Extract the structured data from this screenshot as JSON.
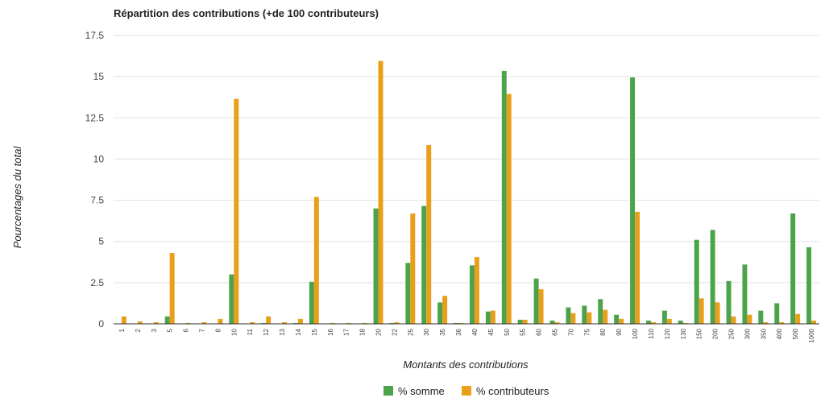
{
  "chart_data": {
    "type": "bar",
    "title": "Répartition des contributions (+de 100 contributeurs)",
    "xlabel": "Montants des contributions",
    "ylabel": "Pourcentages du total",
    "ylim": [
      0,
      17.5
    ],
    "yticks": [
      "0",
      "2.5",
      "5",
      "7.5",
      "10",
      "12.5",
      "15",
      "17.5"
    ],
    "grid": true,
    "legend_position": "bottom",
    "categories": [
      "1",
      "2",
      "3",
      "5",
      "6",
      "7",
      "8",
      "10",
      "11",
      "12",
      "13",
      "14",
      "15",
      "16",
      "17",
      "18",
      "20",
      "22",
      "25",
      "30",
      "35",
      "36",
      "40",
      "45",
      "50",
      "55",
      "60",
      "65",
      "70",
      "75",
      "80",
      "90",
      "100",
      "110",
      "120",
      "130",
      "150",
      "200",
      "250",
      "300",
      "350",
      "400",
      "500",
      "1000"
    ],
    "series": [
      {
        "name": "% somme",
        "color": "#4ca34c",
        "values": [
          0,
          0,
          0,
          0.45,
          0,
          0,
          0,
          3,
          0,
          0.05,
          0,
          0.05,
          2.55,
          0,
          0,
          0,
          7,
          0.05,
          3.7,
          7.15,
          1.3,
          0.05,
          3.55,
          0.75,
          15.35,
          0.25,
          2.75,
          0.2,
          1,
          1.1,
          1.5,
          0.55,
          14.95,
          0.2,
          0.8,
          0.2,
          5.1,
          5.7,
          2.6,
          3.6,
          0.8,
          1.25,
          6.7,
          4.65
        ]
      },
      {
        "name": "% contributeurs",
        "color": "#e8a01a",
        "values": [
          0.45,
          0.15,
          0.1,
          4.3,
          0.05,
          0.1,
          0.3,
          13.65,
          0.1,
          0.45,
          0.1,
          0.3,
          7.7,
          0.05,
          0.05,
          0.05,
          15.95,
          0.1,
          6.7,
          10.85,
          1.7,
          0.05,
          4.05,
          0.8,
          13.95,
          0.25,
          2.1,
          0.1,
          0.65,
          0.7,
          0.85,
          0.3,
          6.8,
          0.1,
          0.3,
          0.05,
          1.55,
          1.3,
          0.45,
          0.55,
          0.1,
          0.1,
          0.6,
          0.2
        ]
      }
    ]
  }
}
